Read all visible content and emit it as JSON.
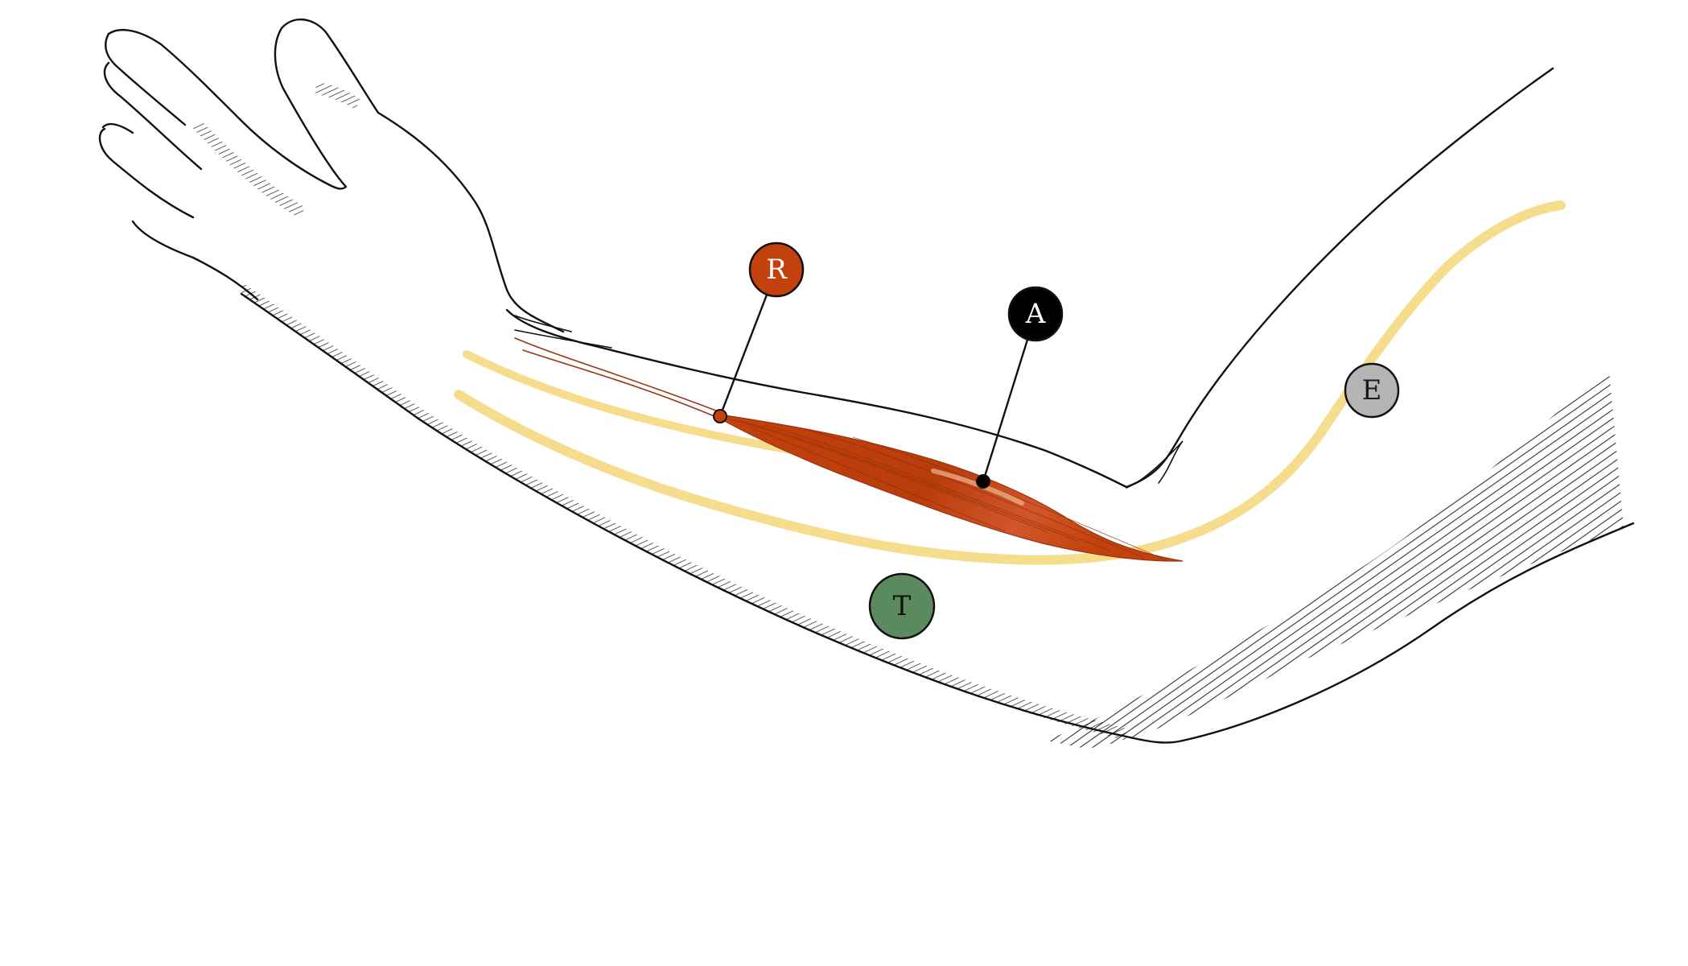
{
  "colors": {
    "muscle": "#c2410c",
    "muscle_dark": "#9a3412",
    "nerve": "#f5d77a",
    "outline": "#111111",
    "hatch": "#1a1a1a",
    "label_A": "#000000",
    "label_E": "#b5b5b5",
    "label_R": "#c2410c",
    "label_T": "#5b8a5f"
  },
  "labels": [
    {
      "id": "R",
      "text": "R",
      "color": "#c2410c",
      "text_color": "#ffffff",
      "target": "muscle-origin"
    },
    {
      "id": "A",
      "text": "A",
      "color": "#000000",
      "text_color": "#ffffff",
      "target": "muscle-belly"
    },
    {
      "id": "E",
      "text": "E",
      "color": "#b5b5b5",
      "text_color": "#1a1a1a",
      "target": "nerve"
    },
    {
      "id": "T",
      "text": "T",
      "color": "#5b8a5f",
      "text_color": "#111111",
      "target": "forearm"
    }
  ]
}
